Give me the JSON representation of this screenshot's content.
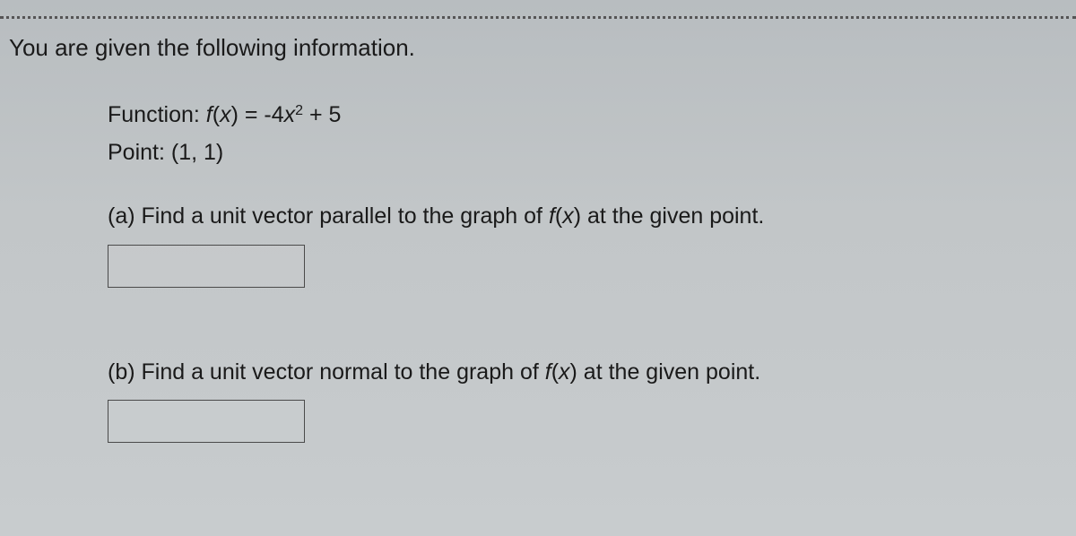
{
  "heading": "You are given the following information.",
  "function_line": {
    "label": "Function: ",
    "lhs_f": "f",
    "lhs_arg": "(x)",
    "eq": " = ",
    "rhs_coef": "-4",
    "rhs_var": "x",
    "rhs_exp": "2",
    "rhs_tail": " + 5"
  },
  "point_line": "Point: (1, 1)",
  "parts": {
    "a": {
      "label": "(a) Find a unit vector parallel to the graph of ",
      "f": "f",
      "arg": "(x)",
      "tail": " at the given point."
    },
    "b": {
      "label": "(b) Find a unit vector normal to the graph of ",
      "f": "f",
      "arg": "(x)",
      "tail": " at the given point."
    }
  },
  "style": {
    "background_top": "#b8bdc0",
    "background_bottom": "#c8ccce",
    "text_color": "#1a1a1a",
    "dotted_color": "#555555",
    "box_border": "#4a4a4a",
    "heading_fontsize": 26,
    "body_fontsize": 25,
    "answer_box_width": 220,
    "answer_box_height": 48
  }
}
